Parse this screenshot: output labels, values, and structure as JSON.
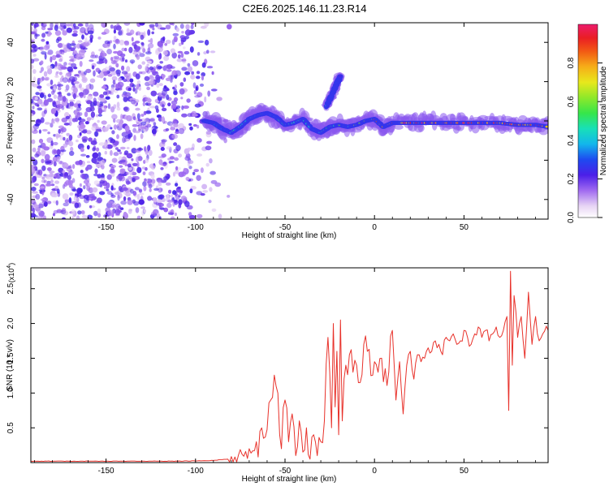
{
  "title": "C2E6.2025.146.11.23.R14",
  "top_panel": {
    "xlabel": "Height of straight line (km)",
    "ylabel": "Frequency (Hz)",
    "colorbar_label": "Normalized spectral amplitude",
    "xticks": [
      "-150",
      "-100",
      "-50",
      "0",
      "50"
    ],
    "yticks": [
      "40",
      "20",
      "0",
      "-20",
      "-40"
    ],
    "cticks": [
      "0.0",
      "0.2",
      "0.4",
      "0.6",
      "0.8"
    ]
  },
  "bottom_panel": {
    "xlabel": "Height of straight line (km)",
    "ylabel": "SNR (10 * v/v)",
    "multiplier": "(x10",
    "multiplier_exp": "4",
    "multiplier_close": ")",
    "xticks": [
      "-150",
      "-100",
      "-50",
      "0",
      "50"
    ],
    "yticks": [
      "2.5",
      "2.0",
      "1.5",
      "1.0",
      "0.5"
    ]
  },
  "colors": {
    "line": "#e8312a",
    "noise": "#8a2be2"
  },
  "chart_data": [
    {
      "type": "heatmap",
      "title": "C2E6.2025.146.11.23.R14",
      "xlabel": "Height of straight line (km)",
      "ylabel": "Frequency (Hz)",
      "xlim": [
        -192,
        97
      ],
      "ylim": [
        -50,
        50
      ],
      "zlabel": "Normalized spectral amplitude",
      "zlim": [
        0,
        1
      ],
      "signal_track": {
        "x": [
          -95,
          -90,
          -85,
          -80,
          -75,
          -70,
          -65,
          -60,
          -55,
          -50,
          -45,
          -40,
          -35,
          -30,
          -25,
          -20,
          -15,
          -10,
          -5,
          0,
          5,
          10,
          20,
          30,
          40,
          50,
          60,
          70,
          80,
          90,
          97
        ],
        "y": [
          0,
          -1,
          -4,
          -6,
          -3,
          1,
          3,
          4,
          2,
          -2,
          -1,
          1,
          -4,
          -6,
          -3,
          -2,
          -3,
          -2,
          0,
          1,
          -3,
          -1,
          -1,
          -1,
          -1,
          -1,
          -1,
          -1,
          -2,
          -2,
          -3
        ],
        "amplitude": [
          0.3,
          0.35,
          0.4,
          0.45,
          0.45,
          0.45,
          0.5,
          0.45,
          0.45,
          0.5,
          0.5,
          0.45,
          0.45,
          0.5,
          0.5,
          0.55,
          0.6,
          0.7,
          0.8,
          0.85,
          0.85,
          0.9,
          0.95,
          0.95,
          0.95,
          0.95,
          0.95,
          0.95,
          0.9,
          0.9,
          0.9
        ]
      },
      "branch_track": {
        "x": [
          -27,
          -25,
          -23,
          -21,
          -19
        ],
        "y": [
          7,
          11,
          15,
          19,
          23
        ],
        "amplitude": [
          0.45,
          0.4,
          0.35,
          0.3,
          0.25
        ]
      }
    },
    {
      "type": "line",
      "xlabel": "Height of straight line (km)",
      "ylabel": "SNR (10 * v/v)",
      "xlim": [
        -192,
        97
      ],
      "ylim": [
        0,
        2.8
      ],
      "y_scale": "x10^4",
      "series": [
        {
          "x": [
            -192,
            -150,
            -110,
            -90,
            -82,
            -78,
            -74,
            -70,
            -66,
            -62,
            -58,
            -55,
            -52,
            -50,
            -48,
            -46,
            -44,
            -42,
            -40,
            -38,
            -36,
            -34,
            -32,
            -30,
            -28,
            -26,
            -25,
            -24,
            -23,
            -22,
            -21,
            -20,
            -19,
            -18,
            -17,
            -16,
            -14,
            -12,
            -10,
            -8,
            -6,
            -4,
            -2,
            0,
            2,
            4,
            6,
            8,
            10,
            12,
            14,
            16,
            18,
            20,
            22,
            24,
            26,
            28,
            30,
            32,
            34,
            36,
            38,
            40,
            42,
            44,
            46,
            48,
            50,
            52,
            54,
            56,
            58,
            60,
            62,
            64,
            66,
            68,
            70,
            72,
            74,
            75,
            76,
            77,
            78,
            80,
            82,
            84,
            86,
            88,
            90,
            92,
            94,
            97
          ],
          "y": [
            0.02,
            0.02,
            0.02,
            0.03,
            0.05,
            0.08,
            0.12,
            0.2,
            0.3,
            0.35,
            0.9,
            1.1,
            0.2,
            0.9,
            0.3,
            0.7,
            0.1,
            0.6,
            0.15,
            0.5,
            0.05,
            0.4,
            0.1,
            0.3,
            0.6,
            1.8,
            1.3,
            0.5,
            2.0,
            0.8,
            1.6,
            0.4,
            2.05,
            0.6,
            1.2,
            1.4,
            1.55,
            1.3,
            1.4,
            1.15,
            1.7,
            1.6,
            1.25,
            1.45,
            1.3,
            1.5,
            1.35,
            1.3,
            1.9,
            0.9,
            1.45,
            0.7,
            1.4,
            1.6,
            1.2,
            1.55,
            1.45,
            1.5,
            1.65,
            1.6,
            1.75,
            1.7,
            1.55,
            1.8,
            1.75,
            1.85,
            1.7,
            1.75,
            1.9,
            1.8,
            1.7,
            1.85,
            1.95,
            1.8,
            1.9,
            1.75,
            1.85,
            1.95,
            1.8,
            1.9,
            2.1,
            0.75,
            2.75,
            1.4,
            2.4,
            1.8,
            2.1,
            1.5,
            2.45,
            1.7,
            2.1,
            1.75,
            1.85,
            1.9
          ]
        }
      ]
    }
  ]
}
